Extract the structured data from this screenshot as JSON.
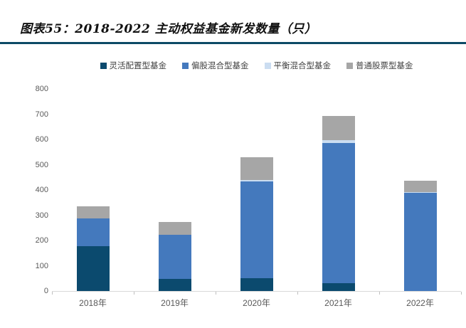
{
  "title": "图表55：2018-2022 主动权益基金新发数量（只）",
  "colors": {
    "title_rule": "#0c4a66",
    "axis_line": "#d9d9d9",
    "tick_mark": "#bfbfbf",
    "axis_text": "#595959",
    "legend_text": "#404040"
  },
  "chart_data": {
    "type": "bar",
    "subtype": "stacked-column",
    "title": "图表55：2018-2022 主动权益基金新发数量（只）",
    "categories": [
      "2018年",
      "2019年",
      "2020年",
      "2021年",
      "2022年"
    ],
    "series": [
      {
        "name": "灵活配置型基金",
        "color": "#0b4a6e",
        "values": [
          177,
          47,
          52,
          30,
          0
        ]
      },
      {
        "name": "偏股混合型基金",
        "color": "#4479bd",
        "values": [
          110,
          177,
          383,
          557,
          388
        ]
      },
      {
        "name": "平衡混合型基金",
        "color": "#cbddf1",
        "values": [
          0,
          0,
          5,
          11,
          5
        ]
      },
      {
        "name": "普通股票型基金",
        "color": "#a6a6a6",
        "values": [
          49,
          48,
          91,
          95,
          44
        ]
      }
    ],
    "totals": [
      336,
      272,
      531,
      693,
      437
    ],
    "xlabel": "",
    "ylabel": "",
    "ylim": [
      0,
      800
    ],
    "ytick_step": 100,
    "grid": false,
    "legend_position": "top-center"
  }
}
